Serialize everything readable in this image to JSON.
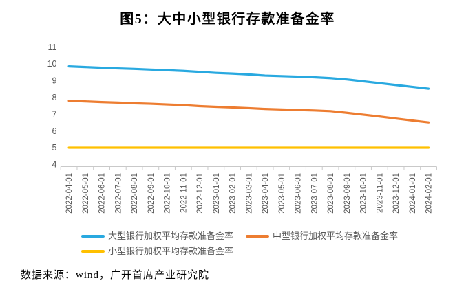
{
  "title": "图5：大中小型银行存款准备金率",
  "source_note": "数据来源：wind，广开首席产业研究院",
  "colors": {
    "large_banks": "#29A9E0",
    "medium_banks": "#ED7D31",
    "small_banks": "#FFC000",
    "axis_text": "#595959",
    "axis_line": "#C9C9C9"
  },
  "chart_data": {
    "type": "line",
    "title": "图5：大中小型银行存款准备金率",
    "xlabel": "",
    "ylabel": "",
    "ylim": [
      4,
      11
    ],
    "ytick_step": 1,
    "grid": false,
    "legend_position": "bottom",
    "categories": [
      "2022-04-01",
      "2022-05-01",
      "2022-06-01",
      "2022-07-01",
      "2022-08-01",
      "2022-09-01",
      "2022-10-01",
      "2022-11-01",
      "2022-12-01",
      "2023-01-01",
      "2023-02-01",
      "2023-03-01",
      "2023-04-01",
      "2023-05-01",
      "2023-06-01",
      "2023-07-01",
      "2023-08-01",
      "2023-09-01",
      "2023-10-01",
      "2023-11-01",
      "2023-12-01",
      "2024-01-01",
      "2024-02-01"
    ],
    "series": [
      {
        "name": "大型银行加权平均存款准备金率",
        "color": "#29A9E0",
        "values": [
          9.85,
          9.81,
          9.77,
          9.73,
          9.7,
          9.66,
          9.62,
          9.58,
          9.52,
          9.46,
          9.42,
          9.37,
          9.3,
          9.27,
          9.24,
          9.2,
          9.15,
          9.07,
          8.96,
          8.85,
          8.74,
          8.63,
          8.52
        ]
      },
      {
        "name": "中型银行加权平均存款准备金率",
        "color": "#ED7D31",
        "values": [
          7.8,
          7.76,
          7.72,
          7.69,
          7.65,
          7.62,
          7.58,
          7.54,
          7.48,
          7.44,
          7.4,
          7.36,
          7.31,
          7.28,
          7.25,
          7.22,
          7.18,
          7.08,
          6.97,
          6.86,
          6.74,
          6.62,
          6.51
        ]
      },
      {
        "name": "小型银行加权平均存款准备金率",
        "color": "#FFC000",
        "values": [
          5.0,
          5.0,
          5.0,
          5.0,
          5.0,
          5.0,
          5.0,
          5.0,
          5.0,
          5.0,
          5.0,
          5.0,
          5.0,
          5.0,
          5.0,
          5.0,
          5.0,
          5.0,
          5.0,
          5.0,
          5.0,
          5.0,
          5.0
        ]
      }
    ]
  }
}
